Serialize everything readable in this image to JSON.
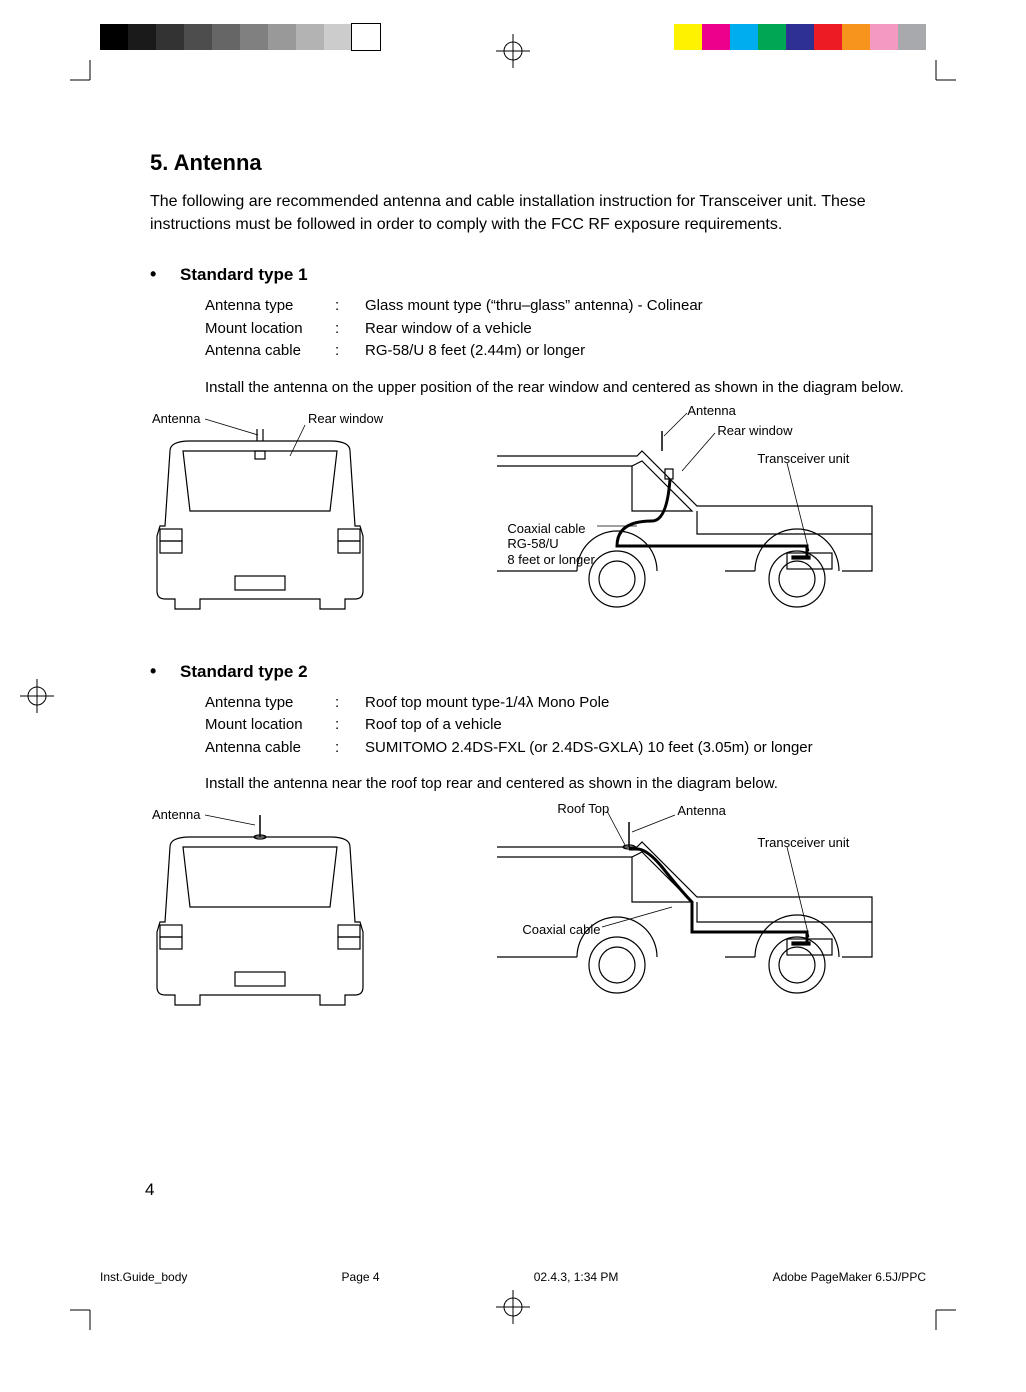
{
  "print_marks": {
    "gray_swatches": [
      "#000000",
      "#1a1a1a",
      "#333333",
      "#4d4d4d",
      "#666666",
      "#808080",
      "#999999",
      "#b3b3b3",
      "#cccccc",
      "#ffffff"
    ],
    "color_swatches": [
      "#fff200",
      "#ec008c",
      "#00aeef",
      "#00a651",
      "#2e3192",
      "#ed1c24",
      "#f7941d",
      "#f49ac1",
      "#a7a9ac"
    ],
    "reg_mark_stroke": "#000000"
  },
  "section": {
    "title": "5.  Antenna",
    "intro": "The following are recommended antenna and cable installation instruction for Transceiver unit. These instructions must be followed in order to comply with the FCC RF exposure requirements."
  },
  "type1": {
    "heading": "Standard type 1",
    "specs": [
      {
        "label": "Antenna type",
        "value": "Glass mount type (“thru–glass” antenna) - Colinear"
      },
      {
        "label": "Mount location",
        "value": "Rear window of a vehicle"
      },
      {
        "label": "Antenna cable",
        "value": "RG-58/U 8 feet (2.44m) or longer"
      }
    ],
    "instruction": "Install the antenna on the upper position of the rear window and centered as shown in the diagram below.",
    "rear_labels": {
      "antenna": "Antenna",
      "rear_window": "Rear window"
    },
    "side_labels": {
      "antenna": "Antenna",
      "rear_window": "Rear window",
      "transceiver": "Transceiver unit",
      "coax_l1": "Coaxial cable",
      "coax_l2": "RG-58/U",
      "coax_l3": "8 feet or longer"
    }
  },
  "type2": {
    "heading": "Standard type 2",
    "specs": [
      {
        "label": "Antenna type",
        "value": "Roof top mount type-1/4λ Mono Pole"
      },
      {
        "label": "Mount location",
        "value": "Roof top of a vehicle"
      },
      {
        "label": "Antenna cable",
        "value": "SUMITOMO 2.4DS-FXL (or 2.4DS-GXLA) 10 feet (3.05m) or longer"
      }
    ],
    "instruction": "Install the antenna near the roof top rear and centered as shown in the diagram below.",
    "rear_labels": {
      "antenna": "Antenna"
    },
    "side_labels": {
      "roof_top": "Roof Top",
      "antenna": "Antenna",
      "transceiver": "Transceiver unit",
      "coax": "Coaxial cable"
    }
  },
  "page_number": "4",
  "footer": {
    "filename": "Inst.Guide_body",
    "page": "Page 4",
    "datetime": "02.4.3, 1:34 PM",
    "app": "Adobe PageMaker 6.5J/PPC"
  },
  "style": {
    "body_font_size": 16,
    "title_font_size": 22,
    "label_font_size": 13,
    "text_color": "#000000",
    "background": "#ffffff",
    "line_stroke": "#000000",
    "line_width_thin": 1,
    "line_width_thick": 2.5
  }
}
